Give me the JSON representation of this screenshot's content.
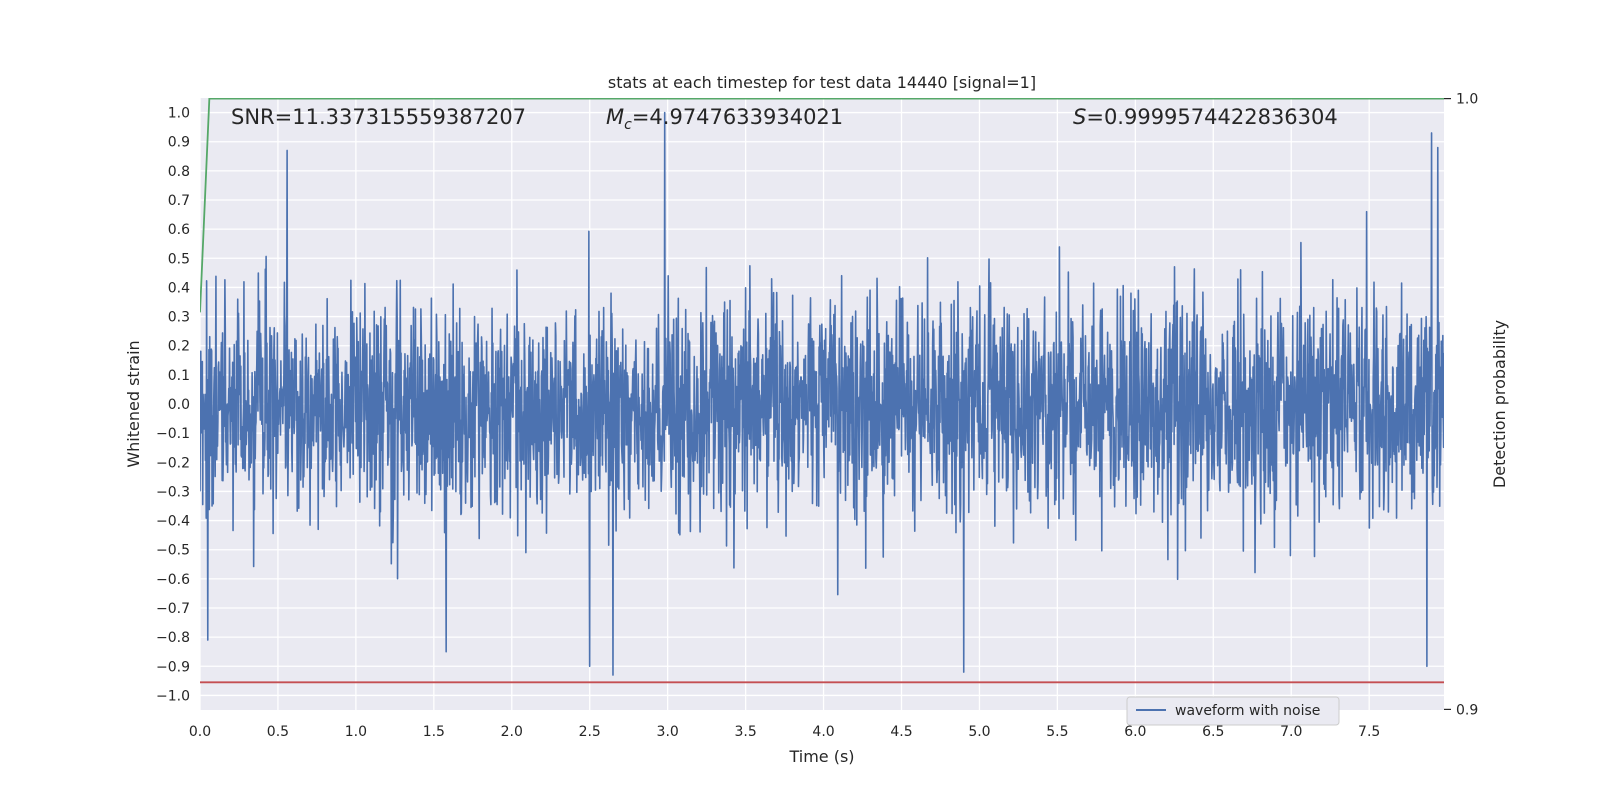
{
  "chart_data": {
    "type": "line",
    "title": "stats at each timestep for test data 14440 [signal=1]",
    "xlabel": "Time (s)",
    "ylabel": "Whitened strain",
    "y2label": "Detection probability",
    "xlim": [
      0,
      7.98
    ],
    "ylim": [
      -1.05,
      1.05
    ],
    "y2lim": [
      0.8999,
      1.0001
    ],
    "grid": true,
    "legend_placement": "lower-right",
    "x_ticks": [
      "0.0",
      "0.5",
      "1.0",
      "1.5",
      "2.0",
      "2.5",
      "3.0",
      "3.5",
      "4.0",
      "4.5",
      "5.0",
      "5.5",
      "6.0",
      "6.5",
      "7.0",
      "7.5"
    ],
    "x_tick_values": [
      0,
      0.5,
      1,
      1.5,
      2,
      2.5,
      3,
      3.5,
      4,
      4.5,
      5,
      5.5,
      6,
      6.5,
      7,
      7.5
    ],
    "y_ticks": [
      "1.0",
      "0.9",
      "0.8",
      "0.7",
      "0.6",
      "0.5",
      "0.4",
      "0.3",
      "0.2",
      "0.1",
      "0.0",
      "−0.1",
      "−0.2",
      "−0.3",
      "−0.4",
      "−0.5",
      "−0.6",
      "−0.7",
      "−0.8",
      "−0.9",
      "−1.0"
    ],
    "y_tick_values": [
      1.0,
      0.9,
      0.8,
      0.7,
      0.6,
      0.5,
      0.4,
      0.3,
      0.2,
      0.1,
      0.0,
      -0.1,
      -0.2,
      -0.3,
      -0.4,
      -0.5,
      -0.6,
      -0.7,
      -0.8,
      -0.9,
      -1.0
    ],
    "y2_ticks": [
      "1.0",
      "0.9"
    ],
    "y2_tick_values": [
      1.0,
      0.9
    ],
    "annotations": {
      "snr": "SNR=11.337315559387207",
      "mc_symbol": "M",
      "mc_subscript": "c",
      "mc_value": "=4.9747633934021",
      "s_symbol": "S",
      "s_value": "=0.9999574422836304"
    },
    "series": [
      {
        "name": "waveform with noise",
        "color": "#4c72b0",
        "axis": "left",
        "sample_count": 3200,
        "envelope_typical": 0.35,
        "peaks": [
          {
            "x": 2.98,
            "y": 1.0
          },
          {
            "x": 0.56,
            "y": 0.87
          },
          {
            "x": 7.9,
            "y": 0.93
          },
          {
            "x": 7.94,
            "y": 0.88
          },
          {
            "x": 2.65,
            "y": -0.93
          },
          {
            "x": 4.9,
            "y": -0.92
          },
          {
            "x": 2.5,
            "y": -0.9
          },
          {
            "x": 7.87,
            "y": -0.9
          },
          {
            "x": 1.58,
            "y": -0.85
          },
          {
            "x": 0.05,
            "y": -0.81
          }
        ]
      },
      {
        "color": "#55a868",
        "axis": "right",
        "x": [
          0.0,
          0.06,
          7.98
        ],
        "values": [
          0.965,
          1.0,
          1.0
        ]
      },
      {
        "color": "#c44e52",
        "axis": "left",
        "x": [
          0.0,
          7.98
        ],
        "values": [
          -0.955,
          -0.955
        ]
      }
    ]
  }
}
